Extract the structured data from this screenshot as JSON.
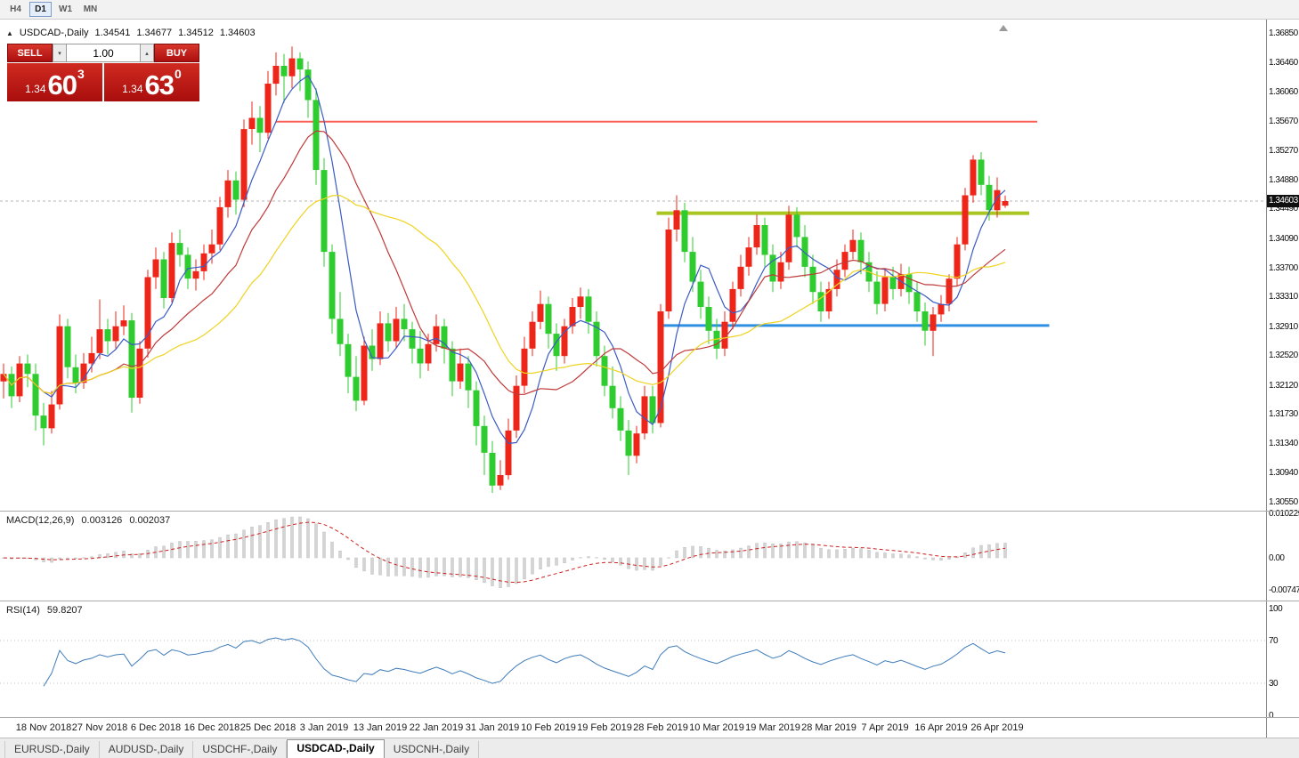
{
  "toolbar": {
    "timeframes": [
      {
        "label": "H4",
        "active": false
      },
      {
        "label": "D1",
        "active": true
      },
      {
        "label": "W1",
        "active": false
      },
      {
        "label": "MN",
        "active": false
      }
    ]
  },
  "icons": {
    "chart_arrow": "▲",
    "dropdown_down": "▾",
    "spinner_up": "▴"
  },
  "chart": {
    "symbol_period": "USDCAD-,Daily",
    "open": "1.34541",
    "high": "1.34677",
    "low": "1.34512",
    "close": "1.34603",
    "price_badge": "1.34603"
  },
  "one_click": {
    "sell_label": "SELL",
    "buy_label": "BUY",
    "volume": "1.00",
    "sell_price": {
      "prefix": "1.34",
      "big": "60",
      "sup": "3"
    },
    "buy_price": {
      "prefix": "1.34",
      "big": "63",
      "sup": "0"
    }
  },
  "macd": {
    "label": "MACD(12,26,9)",
    "main_value": "0.003126",
    "signal_value": "0.002037",
    "axis_labels": [
      "0.010229",
      "0.00",
      "-0.007477"
    ]
  },
  "rsi": {
    "label": "RSI(14)",
    "value": "59.8207",
    "axis_labels": [
      "100",
      "70",
      "30",
      "0"
    ]
  },
  "tabs": {
    "items": [
      {
        "label": "EURUSD-,Daily",
        "active": false
      },
      {
        "label": "AUDUSD-,Daily",
        "active": false
      },
      {
        "label": "USDCHF-,Daily",
        "active": false
      },
      {
        "label": "USDCAD-,Daily",
        "active": true
      },
      {
        "label": "USDCNH-,Daily",
        "active": false
      }
    ]
  },
  "chart_data": {
    "type": "candlestick",
    "title": "USDCAD-,Daily",
    "up_color": "#ee2619",
    "down_color": "#2fcc2f",
    "y_axis": {
      "max": 1.3685,
      "min": 1.3055,
      "labels": [
        "1.36850",
        "1.36460",
        "1.36060",
        "1.35670",
        "1.35270",
        "1.34880",
        "1.34490",
        "1.34090",
        "1.33700",
        "1.33310",
        "1.32910",
        "1.32520",
        "1.32120",
        "1.31730",
        "1.31340",
        "1.30940",
        "1.30550"
      ]
    },
    "x_ticks": {
      "indices": [
        5,
        12,
        19,
        26,
        33,
        40,
        47,
        54,
        61,
        68,
        75,
        82,
        89,
        96,
        103,
        110,
        117,
        124
      ],
      "labels": [
        "18 Nov 2018",
        "27 Nov 2018",
        "6 Dec 2018",
        "16 Dec 2018",
        "25 Dec 2018",
        "3 Jan 2019",
        "13 Jan 2019",
        "22 Jan 2019",
        "31 Jan 2019",
        "10 Feb 2019",
        "19 Feb 2019",
        "28 Feb 2019",
        "10 Mar 2019",
        "19 Mar 2019",
        "28 Mar 2019",
        "7 Apr 2019",
        "16 Apr 2019",
        "26 Apr 2019"
      ]
    },
    "candles": [
      [
        1.3218,
        1.3242,
        1.3195,
        1.3228
      ],
      [
        1.3228,
        1.3238,
        1.3182,
        1.3198
      ],
      [
        1.3198,
        1.3252,
        1.319,
        1.3242
      ],
      [
        1.3242,
        1.3254,
        1.321,
        1.3228
      ],
      [
        1.3228,
        1.3242,
        1.3152,
        1.3172
      ],
      [
        1.3172,
        1.3189,
        1.3132,
        1.3155
      ],
      [
        1.3155,
        1.3205,
        1.3148,
        1.3187
      ],
      [
        1.3187,
        1.3308,
        1.318,
        1.3292
      ],
      [
        1.3292,
        1.3302,
        1.3222,
        1.3237
      ],
      [
        1.3237,
        1.3254,
        1.3202,
        1.3216
      ],
      [
        1.3216,
        1.3256,
        1.3208,
        1.3242
      ],
      [
        1.3242,
        1.3278,
        1.323,
        1.3256
      ],
      [
        1.3256,
        1.3328,
        1.3248,
        1.3288
      ],
      [
        1.3288,
        1.3302,
        1.3254,
        1.3272
      ],
      [
        1.3272,
        1.3312,
        1.3262,
        1.3292
      ],
      [
        1.3292,
        1.332,
        1.328,
        1.33
      ],
      [
        1.33,
        1.331,
        1.3176,
        1.3196
      ],
      [
        1.3196,
        1.3272,
        1.3188,
        1.3262
      ],
      [
        1.3262,
        1.3368,
        1.325,
        1.3358
      ],
      [
        1.3358,
        1.3398,
        1.3342,
        1.3382
      ],
      [
        1.3382,
        1.3392,
        1.3316,
        1.333
      ],
      [
        1.333,
        1.3418,
        1.3324,
        1.3404
      ],
      [
        1.3404,
        1.3422,
        1.3372,
        1.3388
      ],
      [
        1.3388,
        1.3398,
        1.3342,
        1.3356
      ],
      [
        1.3356,
        1.3382,
        1.334,
        1.3366
      ],
      [
        1.3366,
        1.3402,
        1.3354,
        1.339
      ],
      [
        1.339,
        1.3422,
        1.3376,
        1.3402
      ],
      [
        1.3402,
        1.3466,
        1.3394,
        1.3452
      ],
      [
        1.3452,
        1.3502,
        1.3438,
        1.3488
      ],
      [
        1.3488,
        1.35,
        1.3442,
        1.3462
      ],
      [
        1.3462,
        1.357,
        1.3452,
        1.3557
      ],
      [
        1.3557,
        1.3594,
        1.3536,
        1.3572
      ],
      [
        1.3572,
        1.3588,
        1.3526,
        1.3552
      ],
      [
        1.3552,
        1.3635,
        1.3544,
        1.3618
      ],
      [
        1.3618,
        1.366,
        1.3602,
        1.3642
      ],
      [
        1.3642,
        1.3658,
        1.3592,
        1.3628
      ],
      [
        1.3628,
        1.3668,
        1.3612,
        1.3652
      ],
      [
        1.3652,
        1.366,
        1.3608,
        1.3637
      ],
      [
        1.3637,
        1.3648,
        1.3572,
        1.3596
      ],
      [
        1.3596,
        1.3612,
        1.3482,
        1.3502
      ],
      [
        1.3502,
        1.3518,
        1.3372,
        1.3392
      ],
      [
        1.3392,
        1.3402,
        1.3282,
        1.3302
      ],
      [
        1.3302,
        1.3338,
        1.3252,
        1.3268
      ],
      [
        1.3268,
        1.3282,
        1.3202,
        1.3224
      ],
      [
        1.3224,
        1.3252,
        1.3178,
        1.3192
      ],
      [
        1.3192,
        1.3278,
        1.3186,
        1.3266
      ],
      [
        1.3266,
        1.3288,
        1.3232,
        1.3248
      ],
      [
        1.3248,
        1.3312,
        1.324,
        1.3296
      ],
      [
        1.3296,
        1.331,
        1.3258,
        1.3272
      ],
      [
        1.3272,
        1.3318,
        1.3262,
        1.3302
      ],
      [
        1.3302,
        1.3322,
        1.3272,
        1.3288
      ],
      [
        1.3288,
        1.3298,
        1.3242,
        1.3262
      ],
      [
        1.3262,
        1.3286,
        1.3222,
        1.3242
      ],
      [
        1.3242,
        1.3282,
        1.3232,
        1.3268
      ],
      [
        1.3268,
        1.3308,
        1.3258,
        1.3292
      ],
      [
        1.3292,
        1.3302,
        1.3242,
        1.3262
      ],
      [
        1.3262,
        1.3272,
        1.3198,
        1.3218
      ],
      [
        1.3218,
        1.3262,
        1.3208,
        1.3242
      ],
      [
        1.3242,
        1.3252,
        1.3182,
        1.3206
      ],
      [
        1.3206,
        1.3218,
        1.3132,
        1.3158
      ],
      [
        1.3158,
        1.3172,
        1.3092,
        1.3122
      ],
      [
        1.3122,
        1.3138,
        1.3068,
        1.3078
      ],
      [
        1.3078,
        1.3112,
        1.3072,
        1.3092
      ],
      [
        1.3092,
        1.3168,
        1.3086,
        1.3152
      ],
      [
        1.3152,
        1.3226,
        1.3142,
        1.3212
      ],
      [
        1.3212,
        1.3278,
        1.3202,
        1.3262
      ],
      [
        1.3262,
        1.3312,
        1.3252,
        1.3298
      ],
      [
        1.3298,
        1.334,
        1.3288,
        1.3322
      ],
      [
        1.3322,
        1.3332,
        1.3262,
        1.3282
      ],
      [
        1.3282,
        1.3296,
        1.3232,
        1.3252
      ],
      [
        1.3252,
        1.3302,
        1.3242,
        1.3292
      ],
      [
        1.3292,
        1.333,
        1.3282,
        1.3318
      ],
      [
        1.3318,
        1.3344,
        1.3302,
        1.3332
      ],
      [
        1.3332,
        1.3342,
        1.3282,
        1.3298
      ],
      [
        1.3298,
        1.3312,
        1.3238,
        1.3252
      ],
      [
        1.3252,
        1.3266,
        1.3198,
        1.3212
      ],
      [
        1.3212,
        1.3238,
        1.3168,
        1.3182
      ],
      [
        1.3182,
        1.3198,
        1.3138,
        1.3152
      ],
      [
        1.3152,
        1.3166,
        1.3092,
        1.3118
      ],
      [
        1.3118,
        1.3158,
        1.3108,
        1.3148
      ],
      [
        1.3148,
        1.3212,
        1.314,
        1.3198
      ],
      [
        1.3198,
        1.3212,
        1.3148,
        1.3162
      ],
      [
        1.3162,
        1.3322,
        1.3156,
        1.3312
      ],
      [
        1.3312,
        1.3438,
        1.3302,
        1.3422
      ],
      [
        1.3422,
        1.3468,
        1.3406,
        1.3448
      ],
      [
        1.3448,
        1.3458,
        1.3378,
        1.3392
      ],
      [
        1.3392,
        1.3412,
        1.3338,
        1.3352
      ],
      [
        1.3352,
        1.3368,
        1.3302,
        1.3318
      ],
      [
        1.3318,
        1.3332,
        1.3268,
        1.3286
      ],
      [
        1.3286,
        1.3302,
        1.3248,
        1.3262
      ],
      [
        1.3262,
        1.3312,
        1.3252,
        1.3298
      ],
      [
        1.3298,
        1.3352,
        1.3288,
        1.3342
      ],
      [
        1.3342,
        1.3388,
        1.3332,
        1.3372
      ],
      [
        1.3372,
        1.3412,
        1.336,
        1.3398
      ],
      [
        1.3398,
        1.3442,
        1.3388,
        1.3428
      ],
      [
        1.3428,
        1.3438,
        1.3372,
        1.3388
      ],
      [
        1.3388,
        1.3402,
        1.3338,
        1.3352
      ],
      [
        1.3352,
        1.3392,
        1.3342,
        1.3378
      ],
      [
        1.3378,
        1.3454,
        1.3368,
        1.3442
      ],
      [
        1.3442,
        1.3452,
        1.3398,
        1.3412
      ],
      [
        1.3412,
        1.3428,
        1.3358,
        1.3372
      ],
      [
        1.3372,
        1.3388,
        1.3322,
        1.3338
      ],
      [
        1.3338,
        1.3352,
        1.3298,
        1.3312
      ],
      [
        1.3312,
        1.3352,
        1.3302,
        1.3342
      ],
      [
        1.3342,
        1.3382,
        1.3332,
        1.3368
      ],
      [
        1.3368,
        1.3402,
        1.3358,
        1.3392
      ],
      [
        1.3392,
        1.3422,
        1.3382,
        1.3408
      ],
      [
        1.3408,
        1.3418,
        1.3362,
        1.3378
      ],
      [
        1.3378,
        1.3392,
        1.3338,
        1.3352
      ],
      [
        1.3352,
        1.3366,
        1.3308,
        1.3322
      ],
      [
        1.3322,
        1.3368,
        1.3312,
        1.3358
      ],
      [
        1.3358,
        1.3372,
        1.3328,
        1.3342
      ],
      [
        1.3342,
        1.3376,
        1.3332,
        1.3362
      ],
      [
        1.3362,
        1.3372,
        1.3322,
        1.3338
      ],
      [
        1.3338,
        1.3352,
        1.3298,
        1.3312
      ],
      [
        1.3312,
        1.3324,
        1.3266,
        1.3286
      ],
      [
        1.3286,
        1.3318,
        1.3252,
        1.3308
      ],
      [
        1.3308,
        1.3334,
        1.3298,
        1.3322
      ],
      [
        1.3322,
        1.3362,
        1.3312,
        1.3356
      ],
      [
        1.3356,
        1.3412,
        1.3346,
        1.3402
      ],
      [
        1.3402,
        1.3478,
        1.3394,
        1.3468
      ],
      [
        1.3468,
        1.3522,
        1.3458,
        1.3516
      ],
      [
        1.3516,
        1.3526,
        1.3468,
        1.3482
      ],
      [
        1.3482,
        1.3494,
        1.3434,
        1.3448
      ],
      [
        1.3448,
        1.3492,
        1.3438,
        1.3475
      ],
      [
        1.34541,
        1.34677,
        1.34512,
        1.34603
      ]
    ],
    "moving_averages": [
      {
        "name": "ma-fast",
        "period": 6,
        "color": "#3b5bc4"
      },
      {
        "name": "ma-mid",
        "period": 14,
        "color": "#c03a3a"
      },
      {
        "name": "ma-slow",
        "period": 25,
        "color": "#eed31f"
      }
    ],
    "levels": [
      {
        "name": "resistance-line",
        "price": 1.3567,
        "color": "#f95f55",
        "width": 2,
        "from_index": 34,
        "to_index": 129
      },
      {
        "name": "broken-resistance-line",
        "price": 1.3444,
        "color": "#a9c522",
        "width": 4,
        "from_index": 81.5,
        "to_index": 128
      },
      {
        "name": "support-line",
        "price": 1.3293,
        "color": "#2f8fe0",
        "width": 3,
        "from_index": 82,
        "to_index": 130.5
      }
    ],
    "bid_line": {
      "price": 1.34603,
      "color": "#b4b4b4"
    },
    "macd": {
      "fast": 12,
      "slow": 26,
      "signal": 9,
      "hist_color": "#d4d4d4",
      "signal_color": "#cc2222",
      "axis_max": 0.010229,
      "axis_min": -0.007477
    },
    "rsi": {
      "period": 14,
      "color": "#3f7cba",
      "levels": [
        70,
        30
      ]
    }
  }
}
